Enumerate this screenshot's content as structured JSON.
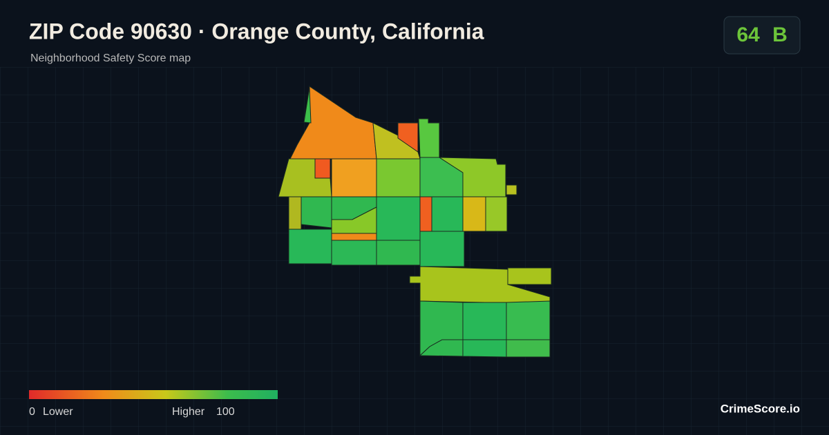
{
  "header": {
    "title": "ZIP Code 90630 · Orange County, California",
    "subtitle": "Neighborhood Safety Score map"
  },
  "badge": {
    "score": "64",
    "grade": "B"
  },
  "legend": {
    "min": "0",
    "min_label": "Lower",
    "max_label": "Higher",
    "max": "100"
  },
  "brand": "CrimeScore.io"
}
